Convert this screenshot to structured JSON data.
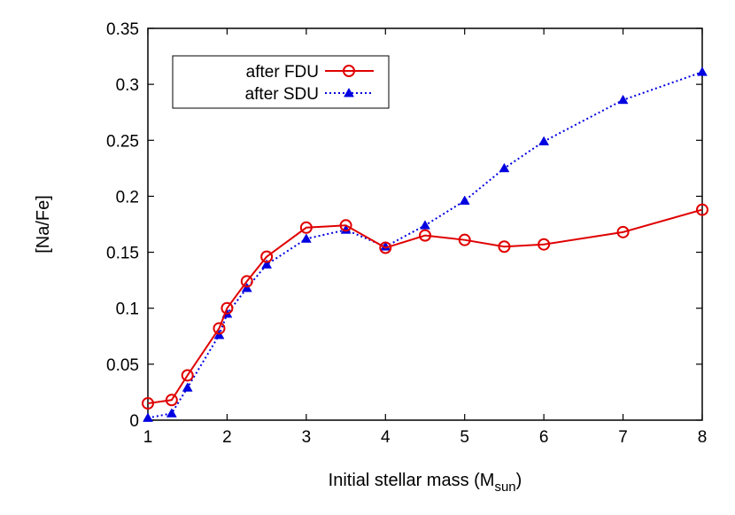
{
  "chart_data": {
    "type": "line",
    "xlabel": "Initial stellar mass (M",
    "xlabel_sub": "sun",
    "xlabel_end": ")",
    "ylabel": "[Na/Fe]",
    "xlim": [
      1,
      8
    ],
    "ylim": [
      0,
      0.35
    ],
    "xticks": [
      1,
      2,
      3,
      4,
      5,
      6,
      7,
      8
    ],
    "yticks": [
      0,
      0.05,
      0.1,
      0.15,
      0.2,
      0.25,
      0.3,
      0.35
    ],
    "ytick_labels": [
      "0",
      "0.05",
      "0.1",
      "0.15",
      "0.2",
      "0.25",
      "0.3",
      "0.35"
    ],
    "grid": false,
    "legend_position": "top-left",
    "series": [
      {
        "name": "after FDU",
        "color": "#e00000",
        "line_style": "solid",
        "marker": "open-circle",
        "x": [
          1,
          1.3,
          1.5,
          1.9,
          2,
          2.25,
          2.5,
          3,
          3.5,
          4,
          4.5,
          5,
          5.5,
          6,
          7,
          8
        ],
        "y": [
          0.015,
          0.018,
          0.04,
          0.082,
          0.1,
          0.124,
          0.146,
          0.172,
          0.174,
          0.154,
          0.165,
          0.161,
          0.155,
          0.157,
          0.168,
          0.188
        ]
      },
      {
        "name": "after SDU",
        "color": "#0000e0",
        "line_style": "dotted",
        "marker": "filled-triangle",
        "x": [
          1,
          1.3,
          1.5,
          1.9,
          2,
          2.25,
          2.5,
          3,
          3.5,
          4,
          4.5,
          5,
          5.5,
          6,
          7,
          8
        ],
        "y": [
          0.002,
          0.006,
          0.029,
          0.076,
          0.095,
          0.118,
          0.139,
          0.162,
          0.17,
          0.155,
          0.174,
          0.196,
          0.225,
          0.249,
          0.286,
          0.311
        ]
      }
    ]
  }
}
